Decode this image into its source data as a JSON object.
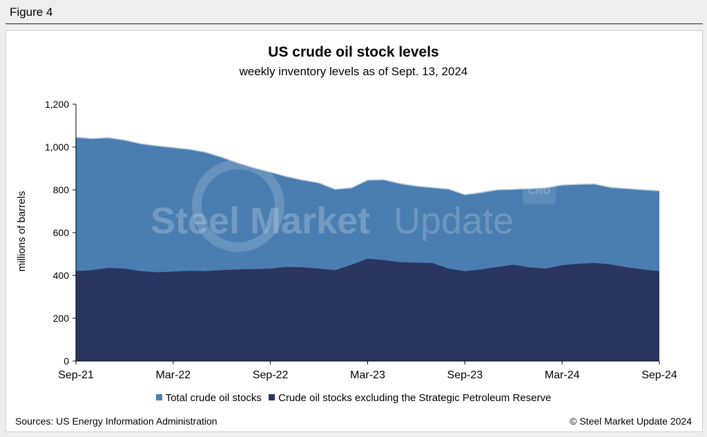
{
  "figure_label": "Figure 4",
  "footer": {
    "sources": "Sources: US Energy Information Administration",
    "copyright": "© Steel Market Update 2024"
  },
  "watermark": {
    "text_bold": "Steel Market",
    "text_light": "Update",
    "corner_logo": "CRU"
  },
  "colors": {
    "total": "#4a7eb0",
    "excl_spr": "#2a3561",
    "background": "#ffffff"
  },
  "chart_data": {
    "type": "area",
    "title": "US crude oil stock levels",
    "subtitle": "weekly inventory levels as of Sept. 13, 2024",
    "xlabel": "",
    "ylabel": "millions of barrels",
    "ylim": [
      0,
      1200
    ],
    "yticks": [
      0,
      200,
      400,
      600,
      800,
      1000,
      1200
    ],
    "ytick_labels": [
      "0",
      "200",
      "400",
      "600",
      "800",
      "1,000",
      "1,200"
    ],
    "x_range_months": [
      0,
      36
    ],
    "xticks": [
      0,
      6,
      12,
      18,
      24,
      30,
      36
    ],
    "xtick_labels": [
      "Sep-21",
      "Mar-22",
      "Sep-22",
      "Mar-23",
      "Sep-23",
      "Mar-24",
      "Sep-24"
    ],
    "series": [
      {
        "name": "Total crude oil stocks",
        "color": "#4a7eb0",
        "x": [
          0,
          1,
          2,
          3,
          4,
          5,
          6,
          7,
          8,
          9,
          10,
          11,
          12,
          13,
          14,
          15,
          16,
          17,
          18,
          19,
          20,
          21,
          22,
          23,
          24,
          25,
          26,
          27,
          28,
          29,
          30,
          31,
          32,
          33,
          34,
          35,
          36
        ],
        "values": [
          1048,
          1042,
          1046,
          1035,
          1018,
          1008,
          1000,
          992,
          978,
          955,
          928,
          905,
          885,
          865,
          848,
          835,
          805,
          812,
          848,
          850,
          832,
          820,
          813,
          806,
          780,
          790,
          803,
          805,
          808,
          812,
          825,
          828,
          830,
          814,
          808,
          803,
          798
        ]
      },
      {
        "name": "Crude oil stocks excluding the Strategic Petroleum Reserve",
        "color": "#2a3561",
        "x": [
          0,
          1,
          2,
          3,
          4,
          5,
          6,
          7,
          8,
          9,
          10,
          11,
          12,
          13,
          14,
          15,
          16,
          17,
          18,
          19,
          20,
          21,
          22,
          23,
          24,
          25,
          26,
          27,
          28,
          29,
          30,
          31,
          32,
          33,
          34,
          35,
          36
        ],
        "values": [
          420,
          425,
          435,
          432,
          420,
          415,
          418,
          422,
          420,
          425,
          428,
          430,
          432,
          440,
          438,
          432,
          425,
          450,
          478,
          472,
          462,
          460,
          458,
          432,
          420,
          428,
          440,
          450,
          438,
          432,
          448,
          455,
          458,
          452,
          438,
          428,
          420
        ]
      }
    ],
    "legend": [
      "Total crude oil stocks",
      "Crude oil stocks excluding the Strategic Petroleum Reserve"
    ]
  }
}
